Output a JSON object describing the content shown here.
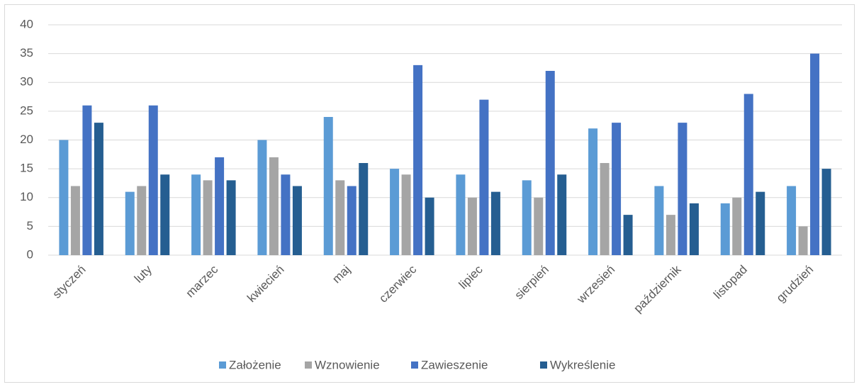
{
  "chart_data": {
    "type": "bar",
    "categories": [
      "styczeń",
      "luty",
      "marzec",
      "kwiecień",
      "maj",
      "czerwiec",
      "lipiec",
      "sierpień",
      "wrzesień",
      "październik",
      "listopad",
      "grudzień"
    ],
    "series": [
      {
        "name": "Założenie",
        "color": "#5b9bd5",
        "values": [
          20,
          11,
          14,
          20,
          24,
          15,
          14,
          13,
          22,
          12,
          9,
          12
        ]
      },
      {
        "name": "Wznowienie",
        "color": "#a5a5a5",
        "values": [
          12,
          12,
          13,
          17,
          13,
          14,
          10,
          10,
          16,
          7,
          10,
          5
        ]
      },
      {
        "name": "Zawieszenie",
        "color": "#4472c4",
        "values": [
          26,
          26,
          17,
          14,
          12,
          33,
          27,
          32,
          23,
          23,
          28,
          35
        ]
      },
      {
        "name": "Wykreślenie",
        "color": "#255e91",
        "values": [
          23,
          14,
          13,
          12,
          16,
          10,
          11,
          14,
          7,
          9,
          11,
          15
        ]
      }
    ],
    "ylim": [
      0,
      40
    ],
    "yticks": [
      0,
      5,
      10,
      15,
      20,
      25,
      30,
      35,
      40
    ],
    "grid": true,
    "legend": "bottom"
  }
}
